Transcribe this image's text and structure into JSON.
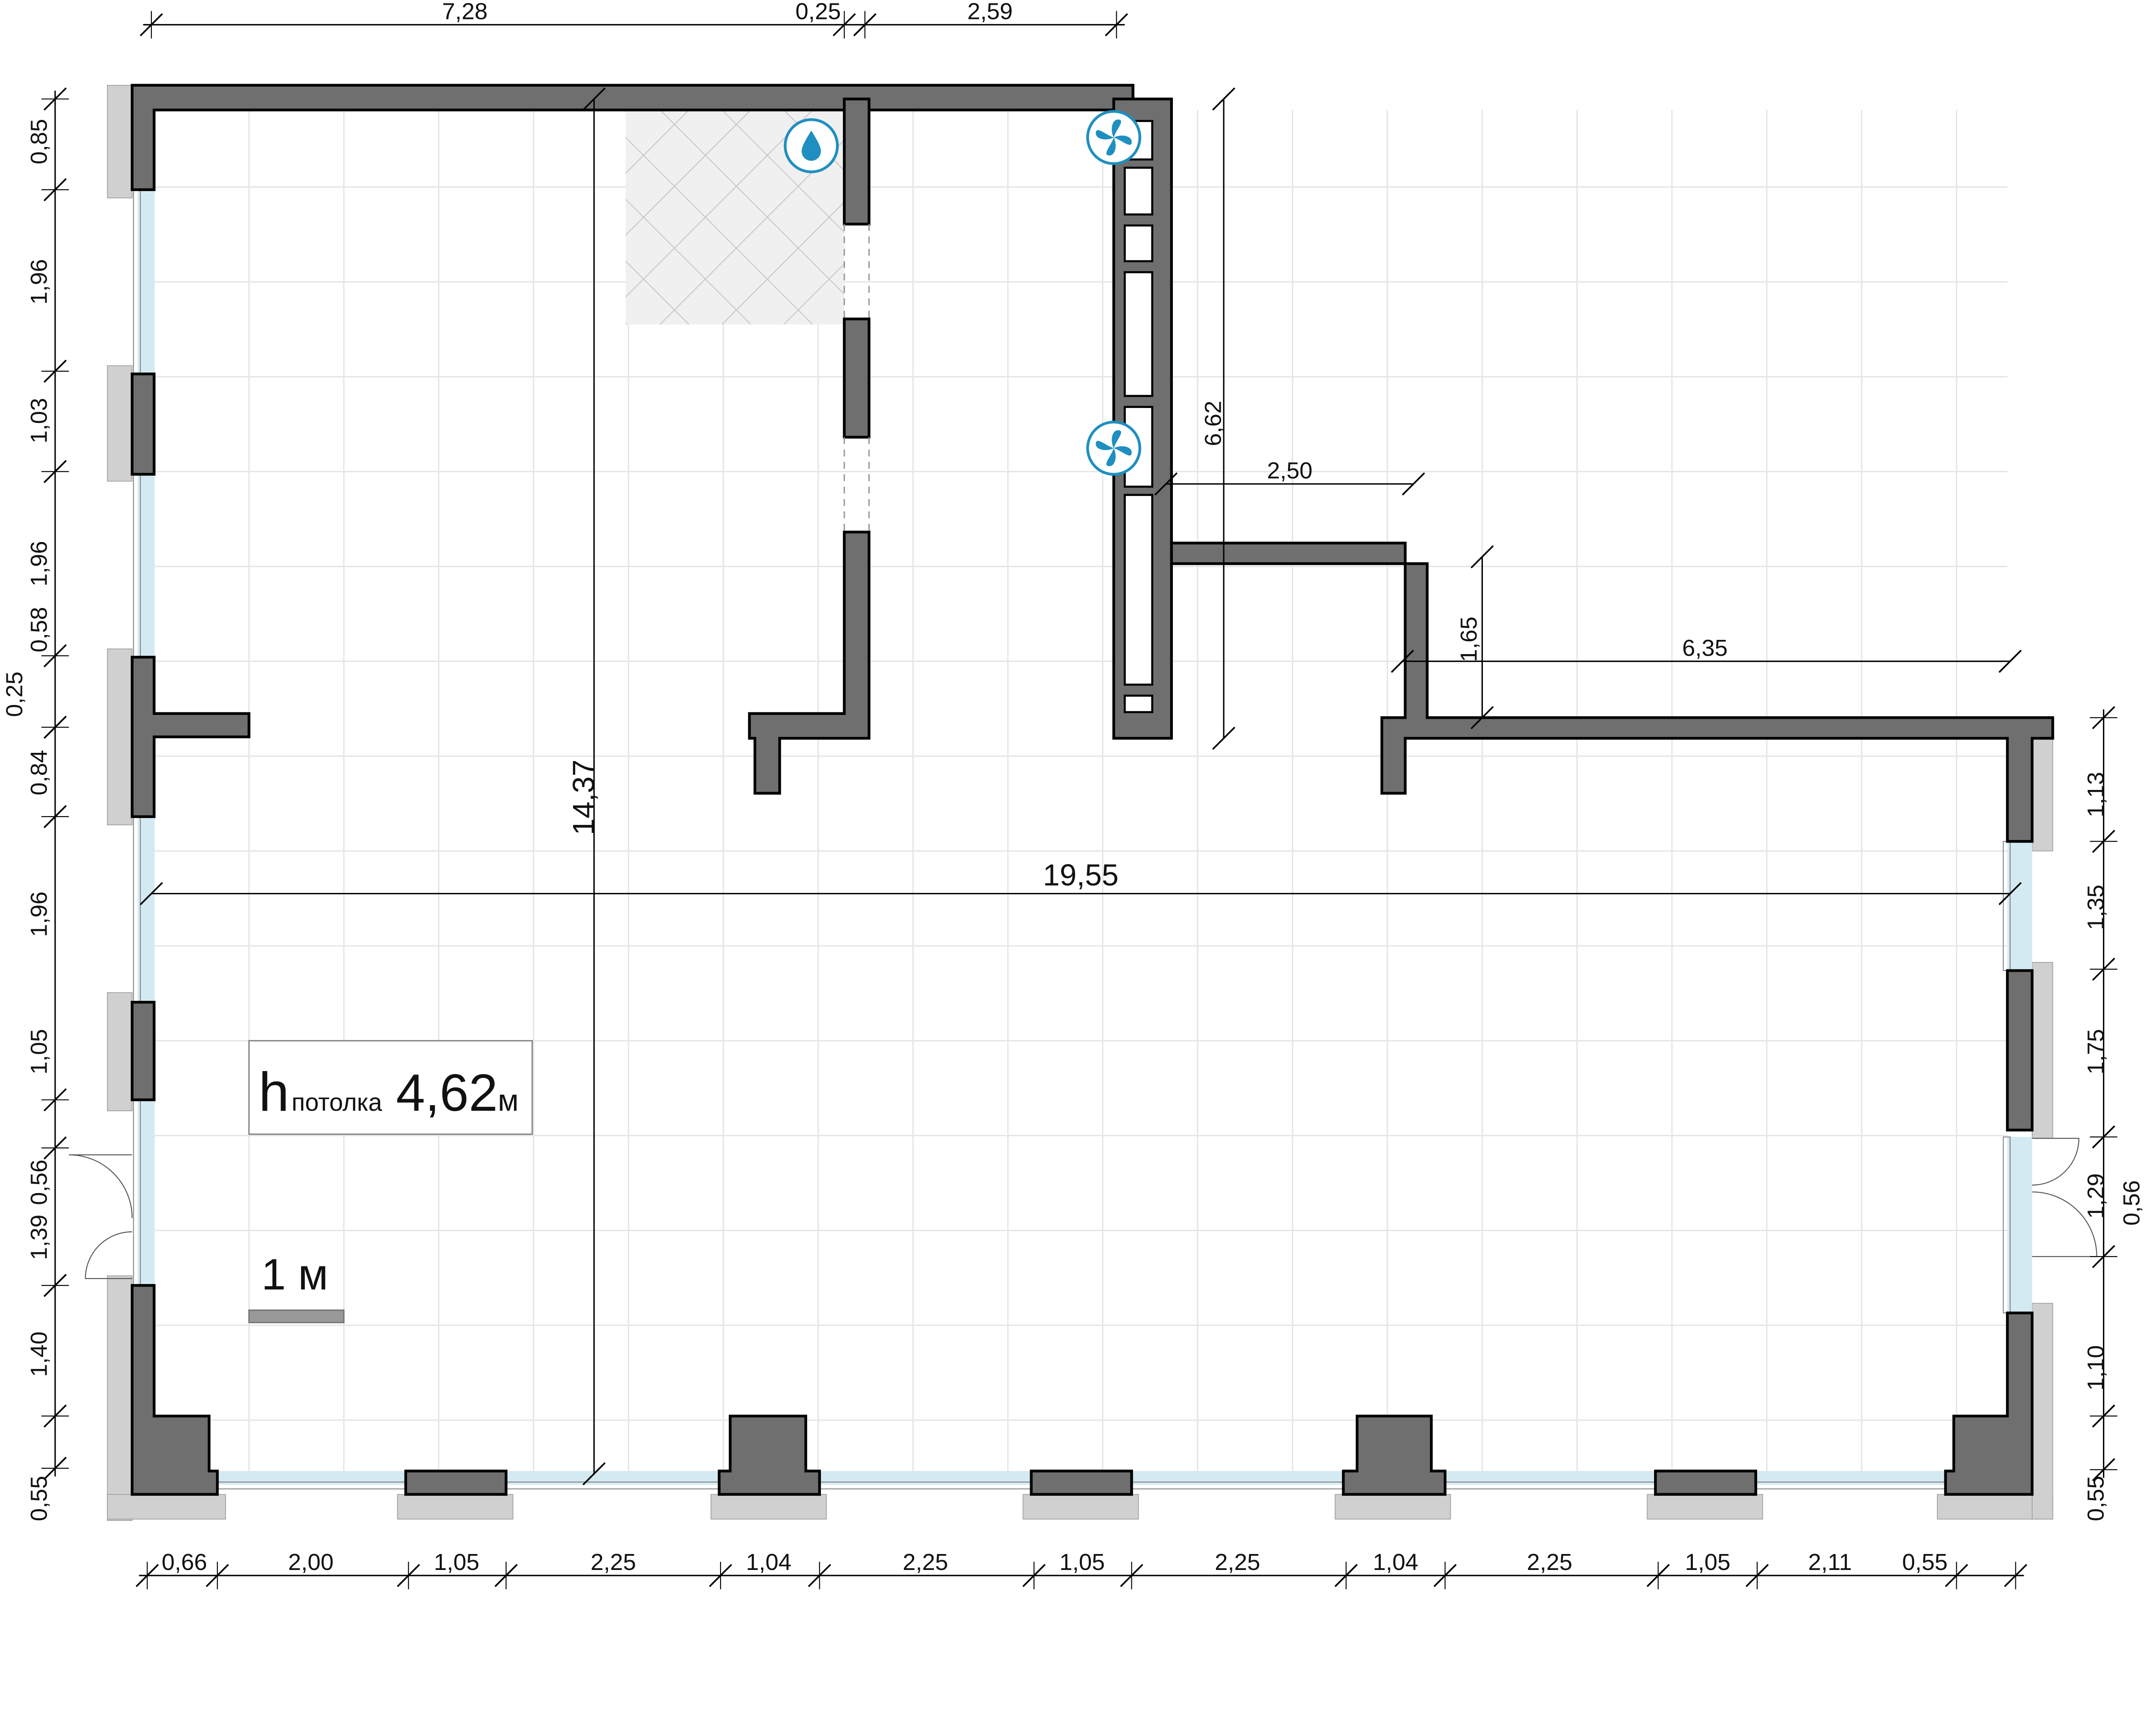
{
  "colors": {
    "wall": "#6f6f6f",
    "wall_outline": "#000000",
    "window": "#d4eaf2",
    "exterior_block": "#d0d0d0",
    "tile": "#f0f0f0",
    "grid": "#e6e6e6",
    "icon": "#1e8fc0"
  },
  "icons": {
    "water": "water-drop-icon",
    "ventilation": "fan-icon"
  },
  "dimensions": {
    "top": [
      "7,28",
      "0,25",
      "2,59"
    ],
    "bottom": [
      "0,66",
      "2,00",
      "1,05",
      "2,25",
      "1,04",
      "2,25",
      "1,05",
      "2,25",
      "1,04",
      "2,25",
      "1,05",
      "2,11",
      "0,55"
    ],
    "left": [
      "0,85",
      "1,96",
      "1,03",
      "1,96",
      "0,58",
      "0,25",
      "0,84",
      "1,96",
      "1,05",
      "0,56",
      "1,39",
      "1,40",
      "0,55"
    ],
    "right": [
      "1,13",
      "1,35",
      "1,75",
      "1,29",
      "0,56",
      "1,10",
      "0,55"
    ],
    "interior": {
      "height_total": "14,37",
      "width_total": "19,55",
      "shaft_height": "6,62",
      "upper_offset": "2,50",
      "step": "1,65",
      "right_wing": "6,35"
    }
  },
  "ceiling": {
    "prefix": "h",
    "label": "потолка",
    "value": "4,62",
    "unit": "м"
  },
  "scale": {
    "label": "1 м"
  }
}
